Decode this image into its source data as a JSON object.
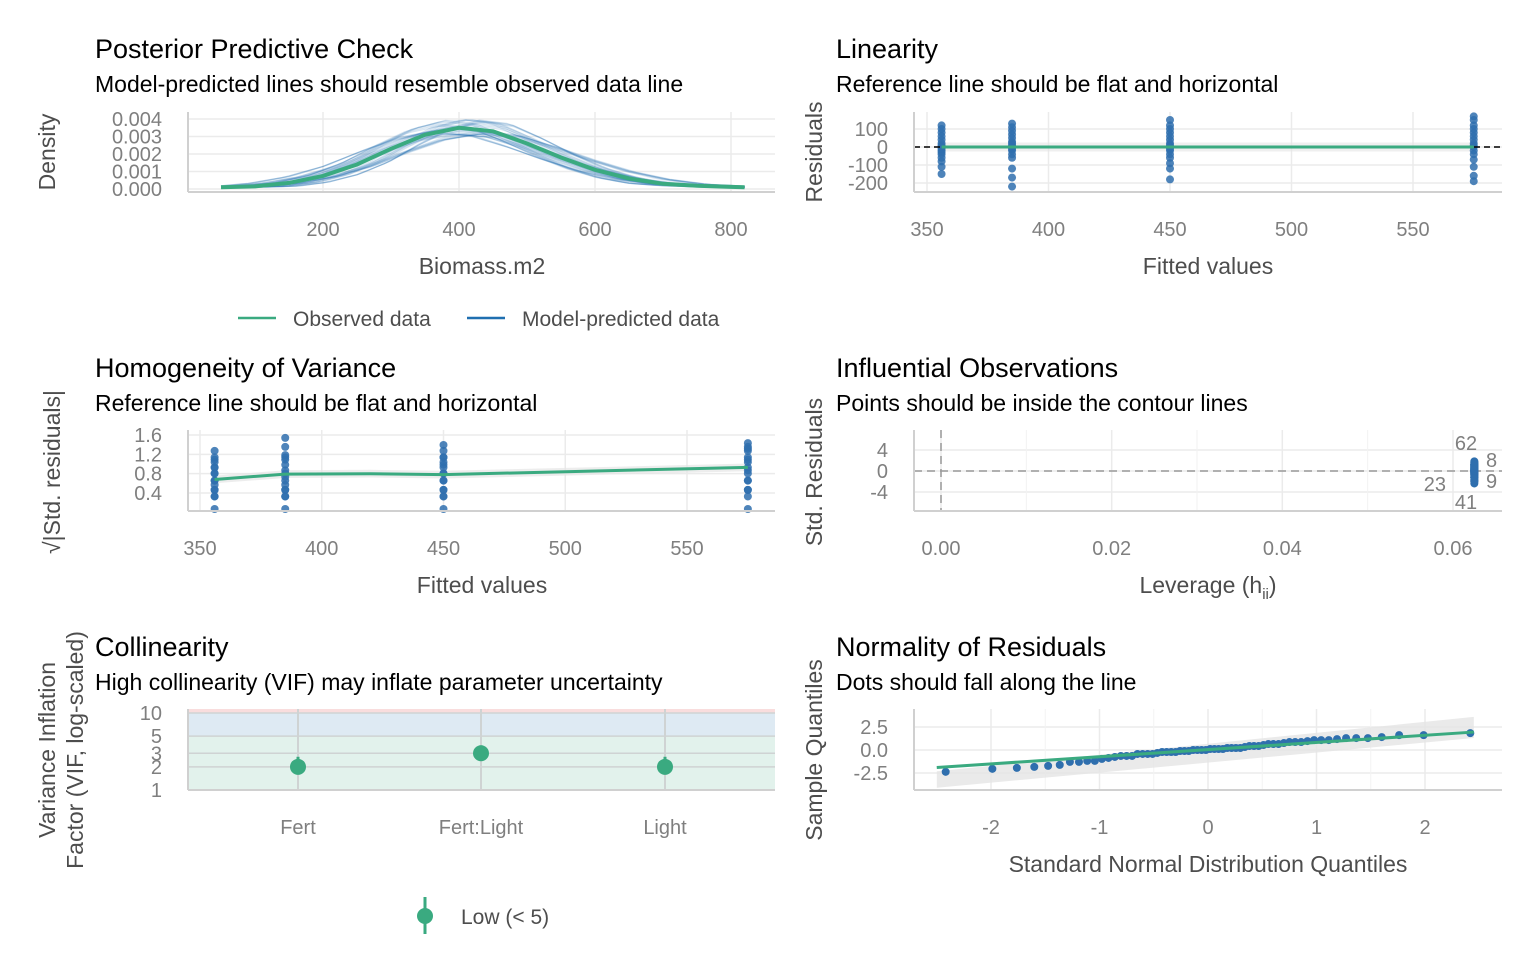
{
  "colors": {
    "observed": "#3aaa80",
    "predicted": "#1f6fb0",
    "point": "#2f6fae",
    "ref": "#000000",
    "low": "#3aaa80"
  },
  "chart_data": [
    {
      "type": "line",
      "title": "Posterior Predictive Check",
      "subtitle": "Model-predicted lines should resemble observed data line",
      "xlabel": "Biomass.m2",
      "ylabel": "Density",
      "xticks": [
        "200",
        "400",
        "600",
        "800"
      ],
      "yticks": [
        "0.000",
        "0.001",
        "0.002",
        "0.003",
        "0.004"
      ],
      "xlim": [
        50,
        820
      ],
      "ylim": [
        0,
        0.004
      ],
      "legend": "bottom",
      "legend_entries": [
        "Observed data",
        "Model-predicted data"
      ],
      "observed": {
        "x": [
          50,
          100,
          150,
          200,
          250,
          300,
          350,
          400,
          450,
          500,
          550,
          600,
          650,
          700,
          750,
          800,
          820
        ],
        "y": [
          0.0001,
          0.00015,
          0.00035,
          0.00075,
          0.0014,
          0.0023,
          0.0031,
          0.0035,
          0.0033,
          0.0026,
          0.0018,
          0.0011,
          0.0006,
          0.0003,
          0.00018,
          0.00012,
          0.0001
        ]
      }
    },
    {
      "type": "scatter",
      "title": "Linearity",
      "subtitle": "Reference line should be flat and horizontal",
      "xlabel": "Fitted values",
      "ylabel": "Residuals",
      "xticks": [
        "350",
        "400",
        "450",
        "500",
        "550"
      ],
      "yticks": [
        "100",
        "0",
        "-100",
        "-200"
      ],
      "xlim": [
        340,
        585
      ],
      "ylim": [
        -230,
        180
      ],
      "fitted": [
        356,
        385,
        450,
        575
      ],
      "residuals": [
        [
          -150,
          -110,
          -80,
          -60,
          -40,
          -30,
          -20,
          -10,
          0,
          10,
          20,
          40,
          60,
          80,
          100,
          120
        ],
        [
          -220,
          -170,
          -120,
          -60,
          -40,
          -20,
          -10,
          0,
          10,
          20,
          30,
          50,
          70,
          90,
          110,
          130
        ],
        [
          -180,
          -120,
          -90,
          -60,
          -40,
          -20,
          -10,
          0,
          10,
          20,
          40,
          60,
          80,
          100,
          120,
          150
        ],
        [
          -190,
          -160,
          -110,
          -70,
          -40,
          -20,
          0,
          10,
          20,
          40,
          60,
          80,
          100,
          120,
          150,
          170
        ]
      ],
      "smooth": {
        "x": [
          356,
          385,
          450,
          575
        ],
        "y": [
          0,
          0,
          0,
          0
        ]
      }
    },
    {
      "type": "scatter",
      "title": "Homogeneity of Variance",
      "subtitle": "Reference line should be flat and horizontal",
      "xlabel": "Fitted values",
      "ylabel": "√|Std. residuals|",
      "xticks": [
        "350",
        "400",
        "450",
        "500",
        "550"
      ],
      "yticks": [
        "0.4",
        "0.8",
        "1.2",
        "1.6"
      ],
      "xlim": [
        340,
        585
      ],
      "ylim": [
        0,
        1.75
      ],
      "smooth": {
        "x": [
          356,
          385,
          420,
          450,
          500,
          575
        ],
        "y": [
          0.68,
          0.79,
          0.8,
          0.78,
          0.84,
          0.93
        ]
      }
    },
    {
      "type": "scatter",
      "title": "Influential Observations",
      "subtitle": "Points should be inside the contour lines",
      "xlabel": "Leverage (h",
      "xlabel_sub": "ii",
      "xlabel_end": ")",
      "ylabel": "Std. Residuals",
      "xticks": [
        "0.00",
        "0.02",
        "0.04",
        "0.06"
      ],
      "yticks": [
        "4",
        "0",
        "-4"
      ],
      "xlim": [
        -0.003,
        0.066
      ],
      "ylim": [
        -7,
        7
      ],
      "leverage": 0.0625,
      "labels": [
        "62",
        "8",
        "9",
        "23",
        "41"
      ]
    },
    {
      "type": "scatter",
      "title": "Collinearity",
      "subtitle": "High collinearity (VIF) may inflate parameter uncertainty",
      "ylabel": "Variance Inflation\nFactor (VIF, log-scaled)",
      "categories": [
        "Fert",
        "Fert:Light",
        "Light"
      ],
      "values": [
        2.0,
        3.0,
        2.0
      ],
      "ci_high": [
        2.7,
        3.8,
        2.7
      ],
      "ci_low": [
        1.8,
        2.6,
        1.8
      ],
      "yticks": [
        "1",
        "2",
        "3",
        "5",
        "10"
      ],
      "ylim": [
        1,
        10
      ],
      "log_y": true,
      "legend_entries": [
        "Low (< 5)"
      ],
      "legend": "bottom"
    },
    {
      "type": "scatter",
      "title": "Normality of Residuals",
      "subtitle": "Dots should fall along the line",
      "xlabel": "Standard Normal Distribution Quantiles",
      "ylabel": "Sample Quantiles",
      "xticks": [
        "-2",
        "-1",
        "0",
        "1",
        "2"
      ],
      "yticks": [
        "2.5",
        "0.0",
        "-2.5"
      ],
      "xlim": [
        -2.8,
        2.7
      ],
      "ylim": [
        -4,
        4.2
      ]
    }
  ]
}
